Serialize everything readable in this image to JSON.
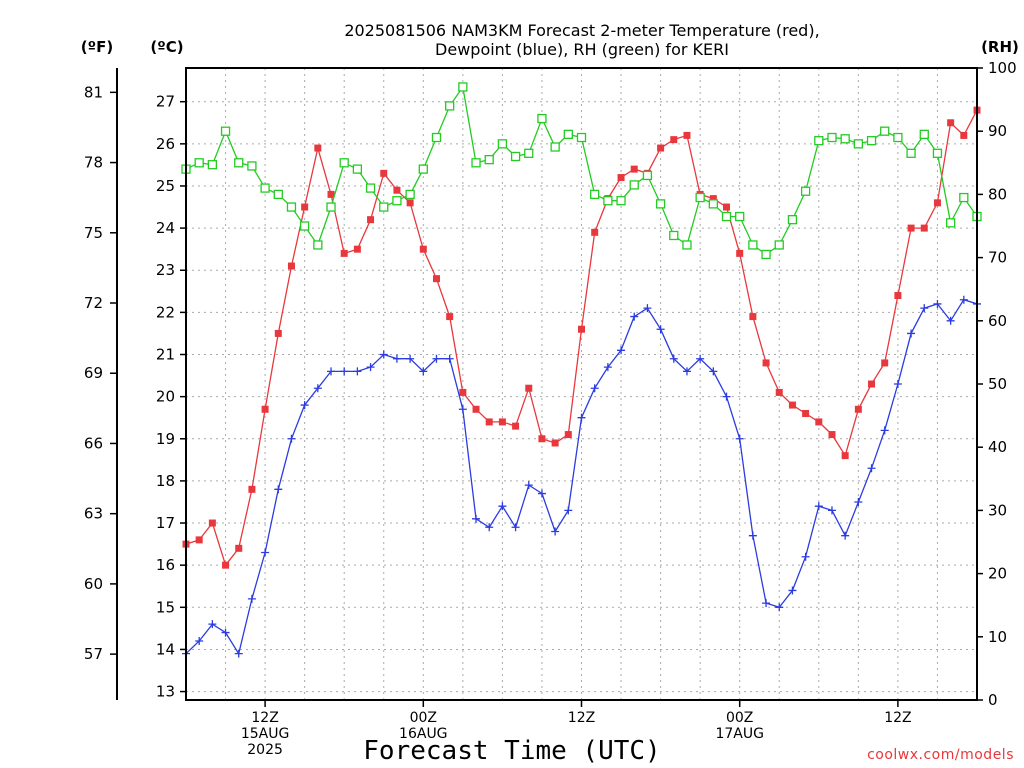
{
  "chart_data": {
    "type": "line",
    "title_line1": "2025081506 NAM3KM Forecast 2-meter Temperature (red),",
    "title_line2": "Dewpoint (blue), RH (green) for KERI",
    "left_outer_unit": "(ºF)",
    "left_inner_unit": "(ºC)",
    "right_unit": "(RH)",
    "xlabel": "Forecast Time (UTC)",
    "credit": "coolwx.com/models",
    "f_ticks": [
      57,
      60,
      63,
      66,
      69,
      72,
      75,
      78,
      81
    ],
    "c_ticks": [
      13,
      14,
      15,
      16,
      17,
      18,
      19,
      20,
      21,
      22,
      23,
      24,
      25,
      26,
      27
    ],
    "rh_ticks": [
      0,
      10,
      20,
      30,
      40,
      50,
      60,
      70,
      80,
      90,
      100
    ],
    "ylim_c": [
      12.8,
      27.8
    ],
    "ylim_rh": [
      0,
      100
    ],
    "x_start_hour": 0,
    "x_end_hour": 60,
    "x_ticks": [
      {
        "hour": 6,
        "lines": [
          "12Z",
          "15AUG",
          "2025"
        ]
      },
      {
        "hour": 18,
        "lines": [
          "00Z",
          "16AUG"
        ]
      },
      {
        "hour": 30,
        "lines": [
          "12Z"
        ]
      },
      {
        "hour": 42,
        "lines": [
          "00Z",
          "17AUG"
        ]
      },
      {
        "hour": 54,
        "lines": [
          "12Z"
        ]
      }
    ],
    "grid": true,
    "series": [
      {
        "name": "2-meter Temperature",
        "axis": "C",
        "color": "#e8383d",
        "marker": "filled-square",
        "values": [
          16.5,
          16.6,
          17.0,
          16.0,
          16.4,
          17.8,
          19.7,
          21.5,
          23.1,
          24.5,
          25.9,
          24.8,
          23.4,
          23.5,
          24.2,
          25.3,
          24.9,
          24.6,
          23.5,
          22.8,
          21.9,
          20.1,
          19.7,
          19.4,
          19.4,
          19.3,
          20.2,
          19.0,
          18.9,
          19.1,
          21.6,
          23.9,
          24.7,
          25.2,
          25.4,
          25.3,
          25.9,
          26.1,
          26.2,
          24.8,
          24.7,
          24.5,
          23.4,
          21.9,
          20.8,
          20.1,
          19.8,
          19.6,
          19.4,
          19.1,
          18.6,
          19.7,
          20.3,
          20.8,
          22.4,
          24.0,
          24.0,
          24.6,
          26.5,
          26.2,
          26.8
        ]
      },
      {
        "name": "Dewpoint",
        "axis": "C",
        "color": "#2b3ce0",
        "marker": "plus",
        "values": [
          13.9,
          14.2,
          14.6,
          14.4,
          13.9,
          15.2,
          16.3,
          17.8,
          19.0,
          19.8,
          20.2,
          20.6,
          20.6,
          20.6,
          20.7,
          21.0,
          20.9,
          20.9,
          20.6,
          20.9,
          20.9,
          19.7,
          17.1,
          16.9,
          17.4,
          16.9,
          17.9,
          17.7,
          16.8,
          17.3,
          19.5,
          20.2,
          20.7,
          21.1,
          21.9,
          22.1,
          21.6,
          20.9,
          20.6,
          20.9,
          20.6,
          20.0,
          19.0,
          16.7,
          15.1,
          15.0,
          15.4,
          16.2,
          17.4,
          17.3,
          16.7,
          17.5,
          18.3,
          19.2,
          20.3,
          21.5,
          22.1,
          22.2,
          21.8,
          22.3,
          22.2
        ]
      },
      {
        "name": "RH",
        "axis": "RH",
        "color": "#22cc22",
        "marker": "open-square",
        "values": [
          84,
          85,
          84.7,
          90,
          85,
          84.5,
          81,
          80,
          78,
          75,
          72,
          78,
          85,
          84,
          81,
          78,
          79,
          80,
          84,
          89,
          94,
          97,
          85,
          85.5,
          88,
          86,
          86.5,
          92,
          87.5,
          89.5,
          89,
          80,
          79,
          79,
          81.5,
          83,
          78.5,
          73.5,
          72,
          79.5,
          78.5,
          76.5,
          76.5,
          72,
          70.5,
          72,
          76,
          80.5,
          88.5,
          89,
          88.8,
          88,
          88.5,
          90,
          89,
          86.5,
          89.5,
          86.5,
          75.5,
          79.5,
          76.5
        ]
      }
    ]
  }
}
